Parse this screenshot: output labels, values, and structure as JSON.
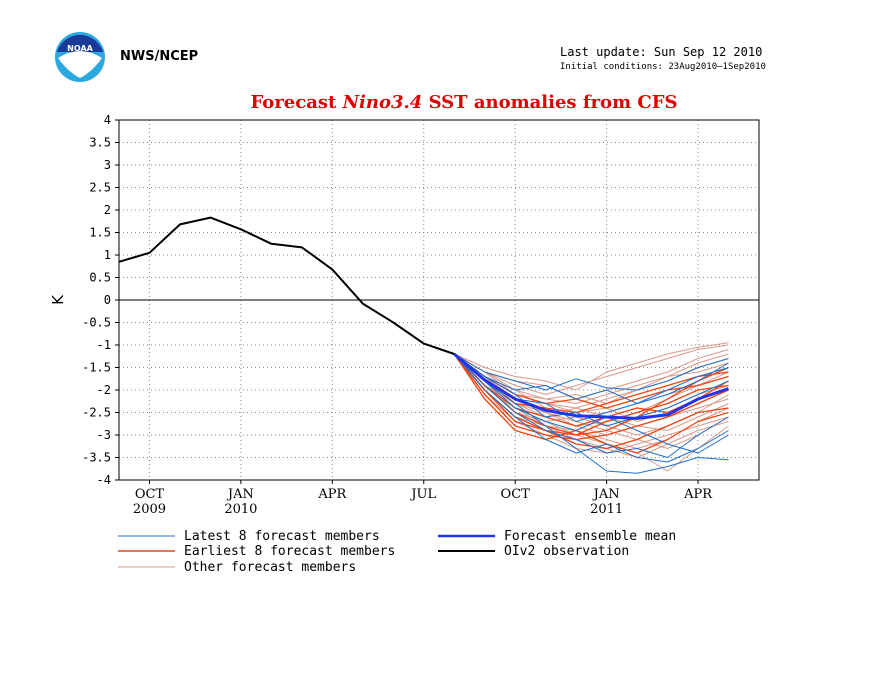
{
  "header": {
    "agency": "NWS/NCEP",
    "last_update": "Last update: Sun Sep 12 2010",
    "initial_conditions": "Initial conditions: 23Aug2010–1Sep2010",
    "logo_text": "NOAA"
  },
  "colors": {
    "title": "#e00000",
    "latest": "#1f6fd0",
    "earliest": "#ee4411",
    "other": "#d89a8c",
    "mean": "#2233ee",
    "observation": "#000000"
  },
  "chart_data": {
    "type": "line",
    "title_parts": [
      "Forecast ",
      "Nino3.4",
      " SST anomalies from CFS"
    ],
    "xlabel": "",
    "ylabel": "K",
    "ylim": [
      -4,
      4
    ],
    "yticks": [
      4,
      3.5,
      3,
      2.5,
      2,
      1.5,
      1,
      0.5,
      0,
      -0.5,
      -1,
      -1.5,
      -2,
      -2.5,
      -3,
      -3.5,
      -4
    ],
    "x_axis": {
      "start": "2009-09",
      "end": "2011-06",
      "ticks": [
        {
          "month": "2009-10",
          "label": "OCT",
          "year": "2009"
        },
        {
          "month": "2010-01",
          "label": "JAN",
          "year": "2010"
        },
        {
          "month": "2010-04",
          "label": "APR",
          "year": ""
        },
        {
          "month": "2010-07",
          "label": "JUL",
          "year": ""
        },
        {
          "month": "2010-10",
          "label": "OCT",
          "year": ""
        },
        {
          "month": "2011-01",
          "label": "JAN",
          "year": "2011"
        },
        {
          "month": "2011-04",
          "label": "APR",
          "year": ""
        }
      ]
    },
    "grid": true,
    "legend": {
      "placement": "bottom",
      "entries": [
        {
          "label": "Latest 8 forecast members",
          "key": "latest"
        },
        {
          "label": "Forecast ensemble mean",
          "key": "mean"
        },
        {
          "label": "Earliest 8 forecast members",
          "key": "earliest"
        },
        {
          "label": "OIv2 observation",
          "key": "observation"
        },
        {
          "label": "Other forecast members",
          "key": "other"
        }
      ]
    },
    "observation": {
      "name": "OIv2 observation",
      "x": [
        "2009-09",
        "2009-10",
        "2009-11",
        "2009-12",
        "2010-01",
        "2010-02",
        "2010-03",
        "2010-04",
        "2010-05",
        "2010-06",
        "2010-07",
        "2010-08"
      ],
      "y": [
        0.85,
        1.05,
        1.68,
        1.83,
        1.57,
        1.25,
        1.17,
        0.68,
        -0.08,
        -0.5,
        -0.97,
        -1.2
      ]
    },
    "forecast_x": [
      "2010-08",
      "2010-09",
      "2010-10",
      "2010-11",
      "2010-12",
      "2011-01",
      "2011-02",
      "2011-03",
      "2011-04",
      "2011-05"
    ],
    "ensemble_mean": {
      "name": "Forecast ensemble mean",
      "y": [
        -1.2,
        -1.78,
        -2.2,
        -2.45,
        -2.57,
        -2.6,
        -2.63,
        -2.55,
        -2.2,
        -1.97
      ]
    },
    "latest_members": [
      [
        -1.2,
        -1.8,
        -2.3,
        -2.8,
        -3.3,
        -3.8,
        -3.85,
        -3.7,
        -3.5,
        -3.55
      ],
      [
        -1.2,
        -1.7,
        -2.0,
        -1.9,
        -2.2,
        -2.0,
        -2.3,
        -2.1,
        -1.8,
        -1.4
      ],
      [
        -1.2,
        -1.9,
        -2.5,
        -2.9,
        -3.1,
        -3.4,
        -3.3,
        -3.5,
        -3.0,
        -2.6
      ],
      [
        -1.2,
        -1.6,
        -1.8,
        -2.0,
        -1.75,
        -1.95,
        -2.0,
        -1.8,
        -1.5,
        -1.3
      ],
      [
        -1.2,
        -1.8,
        -2.4,
        -2.7,
        -2.9,
        -2.6,
        -2.9,
        -3.2,
        -3.4,
        -3.0
      ],
      [
        -1.2,
        -1.7,
        -2.1,
        -2.6,
        -2.5,
        -2.8,
        -2.6,
        -2.4,
        -2.1,
        -1.8
      ],
      [
        -1.2,
        -2.0,
        -2.6,
        -3.1,
        -3.4,
        -3.2,
        -3.5,
        -3.6,
        -3.3,
        -2.9
      ],
      [
        -1.2,
        -1.75,
        -2.2,
        -2.3,
        -2.7,
        -2.5,
        -2.3,
        -2.0,
        -1.7,
        -1.5
      ]
    ],
    "earliest_members": [
      [
        -1.2,
        -1.9,
        -2.5,
        -2.8,
        -3.0,
        -2.9,
        -2.6,
        -2.2,
        -1.8,
        -1.5
      ],
      [
        -1.2,
        -2.1,
        -2.8,
        -3.0,
        -3.1,
        -3.0,
        -2.8,
        -2.6,
        -2.3,
        -2.0
      ],
      [
        -1.2,
        -1.8,
        -2.3,
        -2.4,
        -2.5,
        -2.3,
        -2.1,
        -1.9,
        -1.7,
        -1.6
      ],
      [
        -1.2,
        -2.0,
        -2.6,
        -2.9,
        -3.2,
        -3.3,
        -3.1,
        -2.8,
        -2.5,
        -2.4
      ],
      [
        -1.2,
        -1.7,
        -2.1,
        -2.3,
        -2.2,
        -2.4,
        -2.2,
        -2.0,
        -1.9,
        -1.7
      ],
      [
        -1.2,
        -2.2,
        -2.9,
        -3.1,
        -2.9,
        -3.2,
        -3.4,
        -3.1,
        -2.7,
        -2.5
      ],
      [
        -1.2,
        -1.9,
        -2.4,
        -2.6,
        -2.8,
        -2.6,
        -2.4,
        -2.5,
        -2.2,
        -1.8
      ],
      [
        -1.2,
        -2.0,
        -2.7,
        -2.9,
        -3.0,
        -2.7,
        -2.5,
        -2.3,
        -2.0,
        -1.9
      ]
    ],
    "other_members": [
      [
        -1.2,
        -1.6,
        -1.9,
        -2.1,
        -1.9,
        -1.7,
        -1.5,
        -1.3,
        -1.1,
        -1.0
      ],
      [
        -1.2,
        -1.7,
        -2.2,
        -2.5,
        -2.7,
        -2.9,
        -3.1,
        -3.3,
        -3.0,
        -2.6
      ],
      [
        -1.2,
        -1.5,
        -1.7,
        -1.8,
        -2.0,
        -1.6,
        -1.4,
        -1.2,
        -1.05,
        -0.95
      ],
      [
        -1.2,
        -1.9,
        -2.5,
        -2.7,
        -3.0,
        -3.2,
        -3.4,
        -3.8,
        -3.3,
        -2.8
      ],
      [
        -1.2,
        -1.8,
        -2.3,
        -2.4,
        -2.6,
        -2.8,
        -2.6,
        -2.4,
        -2.1,
        -1.9
      ],
      [
        -1.2,
        -1.6,
        -2.0,
        -2.2,
        -2.1,
        -2.3,
        -2.0,
        -1.8,
        -1.5,
        -1.3
      ],
      [
        -1.2,
        -2.0,
        -2.6,
        -2.8,
        -3.1,
        -3.3,
        -3.5,
        -3.2,
        -2.9,
        -2.7
      ],
      [
        -1.2,
        -1.7,
        -2.1,
        -2.3,
        -2.5,
        -2.4,
        -2.7,
        -2.5,
        -2.2,
        -2.0
      ],
      [
        -1.2,
        -1.8,
        -2.4,
        -2.6,
        -2.4,
        -2.6,
        -2.8,
        -2.9,
        -2.6,
        -2.3
      ],
      [
        -1.2,
        -1.6,
        -1.8,
        -1.9,
        -2.2,
        -2.0,
        -1.8,
        -1.6,
        -1.3,
        -1.1
      ],
      [
        -1.2,
        -1.9,
        -2.3,
        -2.5,
        -2.8,
        -3.0,
        -2.8,
        -2.6,
        -2.4,
        -2.2
      ],
      [
        -1.2,
        -1.7,
        -2.0,
        -2.4,
        -2.6,
        -2.5,
        -2.3,
        -2.1,
        -1.9,
        -1.6
      ],
      [
        -1.2,
        -2.1,
        -2.7,
        -3.0,
        -3.3,
        -3.4,
        -3.2,
        -3.0,
        -2.8,
        -2.6
      ],
      [
        -1.2,
        -1.8,
        -2.2,
        -2.3,
        -2.4,
        -2.2,
        -2.0,
        -1.7,
        -1.4,
        -1.2
      ],
      [
        -1.2,
        -1.9,
        -2.4,
        -2.8,
        -2.9,
        -3.1,
        -3.3,
        -3.1,
        -2.7,
        -2.4
      ],
      [
        -1.2,
        -1.6,
        -2.1,
        -2.2,
        -2.3,
        -2.1,
        -1.9,
        -1.7,
        -1.6,
        -1.4
      ],
      [
        -1.2,
        -1.8,
        -2.5,
        -2.7,
        -2.6,
        -2.8,
        -3.0,
        -2.8,
        -2.5,
        -2.1
      ],
      [
        -1.2,
        -1.7,
        -2.3,
        -2.6,
        -2.8,
        -2.7,
        -2.5,
        -2.2,
        -1.9,
        -1.7
      ]
    ]
  }
}
